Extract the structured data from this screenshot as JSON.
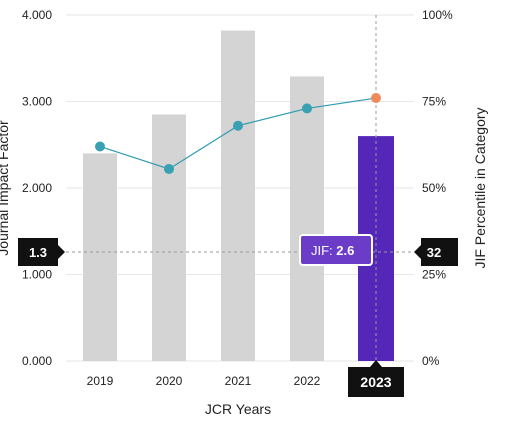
{
  "chart_data": {
    "type": "bar",
    "title": "",
    "xlabel": "JCR Years",
    "ylabel": "Journal Impact Factor",
    "ylabel_right": "JIF Percentile in Category",
    "categories": [
      "2019",
      "2020",
      "2021",
      "2022",
      "2023"
    ],
    "ylim": [
      0,
      4
    ],
    "y2lim": [
      0,
      100
    ],
    "yticks": [
      "0.000",
      "1.000",
      "2.000",
      "3.000",
      "4.000"
    ],
    "y2ticks": [
      "0%",
      "25%",
      "50%",
      "75%",
      "100%"
    ],
    "series": [
      {
        "kind": "bar",
        "axis": "left",
        "values": [
          2.4,
          2.85,
          3.82,
          3.29,
          2.6
        ]
      },
      {
        "kind": "line",
        "axis": "right",
        "values": [
          62,
          55.5,
          68,
          73,
          76
        ]
      }
    ],
    "highlight_index": 4,
    "crosshair_left_label": "1.3",
    "crosshair_right_label": "32",
    "tooltip_prefix": "JIF: ",
    "tooltip_value": "2.6",
    "grid": true,
    "colors": {
      "bar": "#d4d4d4",
      "bar_highlight": "#5427b8",
      "line": "#2e9bb0",
      "point": "#3aa0b4",
      "point_highlight": "#f08a5d",
      "badge": "#111111",
      "tooltip": "#6a3cc8",
      "grid": "#e6e6e6"
    }
  }
}
